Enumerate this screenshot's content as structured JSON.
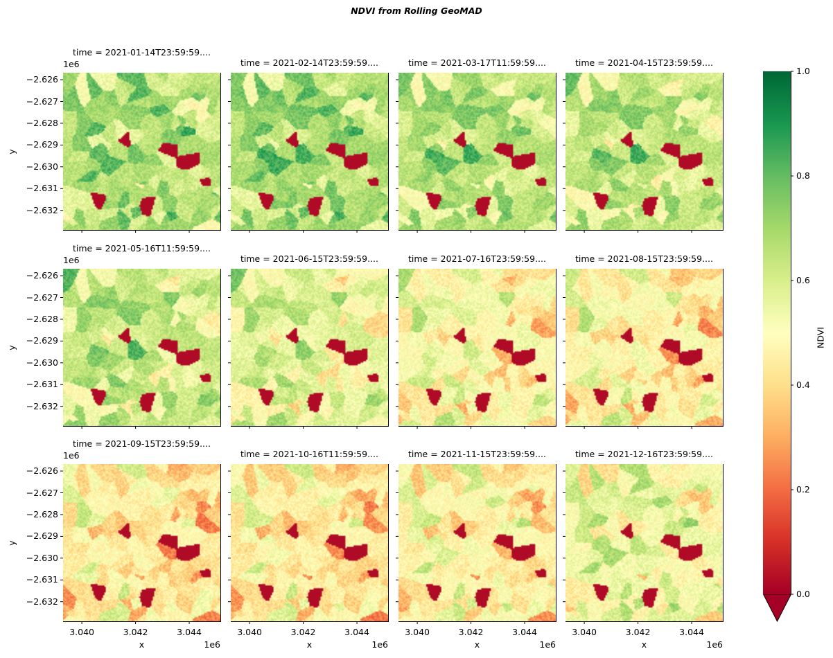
{
  "chart_data": {
    "type": "heatmap",
    "title": "NDVI from Rolling GeoMAD",
    "layout": "facet grid 3 rows x 4 columns",
    "xlabel": "x",
    "ylabel": "y",
    "x_offset_label": "1e6",
    "y_offset_label": "1e6",
    "xlim": [
      3.0393,
      3.04516
    ],
    "ylim": [
      -2.6329,
      -2.62568
    ],
    "x_ticks": [
      "3.040",
      "3.042",
      "3.044"
    ],
    "x_tick_values": [
      3.04,
      3.042,
      3.044
    ],
    "y_ticks": [
      "−2.626",
      "−2.627",
      "−2.628",
      "−2.629",
      "−2.630",
      "−2.631",
      "−2.632"
    ],
    "y_tick_values": [
      -2.626,
      -2.627,
      -2.628,
      -2.629,
      -2.63,
      -2.631,
      -2.632
    ],
    "colormap": "RdYlGn",
    "colormap_stops": [
      "#a50026",
      "#d73027",
      "#f46d43",
      "#fdae61",
      "#fee08b",
      "#ffffbf",
      "#d9ef8b",
      "#a6d96a",
      "#66bd63",
      "#1a9850",
      "#006837"
    ],
    "colorbar": {
      "label": "NDVI",
      "range": [
        0,
        1
      ],
      "extend": "min",
      "ticks": [
        "0.0",
        "0.2",
        "0.4",
        "0.6",
        "0.8",
        "1.0"
      ],
      "tick_values": [
        0,
        0.2,
        0.4,
        0.6,
        0.8,
        1.0
      ]
    },
    "panels": [
      {
        "title": "time = 2021-01-14T23:59:59....",
        "approx_mean_ndvi": 0.66
      },
      {
        "title": "time = 2021-02-14T23:59:59....",
        "approx_mean_ndvi": 0.68
      },
      {
        "title": "time = 2021-03-17T11:59:59....",
        "approx_mean_ndvi": 0.65
      },
      {
        "title": "time = 2021-04-15T23:59:59....",
        "approx_mean_ndvi": 0.63
      },
      {
        "title": "time = 2021-05-16T11:59:59....",
        "approx_mean_ndvi": 0.62
      },
      {
        "title": "time = 2021-06-15T23:59:59....",
        "approx_mean_ndvi": 0.56
      },
      {
        "title": "time = 2021-07-16T23:59:59....",
        "approx_mean_ndvi": 0.49
      },
      {
        "title": "time = 2021-08-15T23:59:59....",
        "approx_mean_ndvi": 0.46
      },
      {
        "title": "time = 2021-09-15T23:59:59....",
        "approx_mean_ndvi": 0.43
      },
      {
        "title": "time = 2021-10-16T11:59:59....",
        "approx_mean_ndvi": 0.43
      },
      {
        "title": "time = 2021-11-15T23:59:59....",
        "approx_mean_ndvi": 0.46
      },
      {
        "title": "time = 2021-12-16T23:59:59....",
        "approx_mean_ndvi": 0.53
      }
    ]
  }
}
